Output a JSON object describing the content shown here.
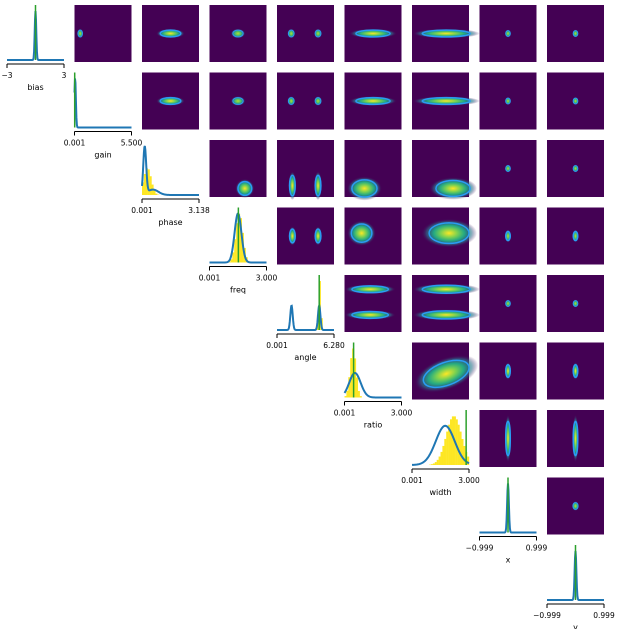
{
  "chart_data": {
    "type": "pairplot",
    "variables": [
      {
        "name": "bias",
        "range_labels": [
          "−3",
          "3"
        ],
        "range": [
          -3,
          3
        ]
      },
      {
        "name": "gain",
        "range_labels": [
          "0.001",
          "5.500"
        ],
        "range": [
          0.001,
          5.5
        ]
      },
      {
        "name": "phase",
        "range_labels": [
          "0.001",
          "3.138"
        ],
        "range": [
          0.001,
          3.138
        ]
      },
      {
        "name": "freq",
        "range_labels": [
          "0.001",
          "3.000"
        ],
        "range": [
          0.001,
          3.0
        ]
      },
      {
        "name": "angle",
        "range_labels": [
          "0.001",
          "6.280"
        ],
        "range": [
          0.001,
          6.28
        ]
      },
      {
        "name": "ratio",
        "range_labels": [
          "0.001",
          "3.000"
        ],
        "range": [
          0.001,
          3.0
        ]
      },
      {
        "name": "width",
        "range_labels": [
          "0.001",
          "3.000"
        ],
        "range": [
          0.001,
          3.0
        ]
      },
      {
        "name": "x",
        "range_labels": [
          "−0.999",
          "0.999"
        ],
        "range": [
          -0.999,
          0.999
        ]
      },
      {
        "name": "y",
        "range_labels": [
          "−0.999",
          "0.999"
        ],
        "range": [
          -0.999,
          0.999
        ]
      }
    ],
    "diagonal": [
      {
        "var": "bias",
        "true_value": 0.0,
        "hist": false,
        "kde": [
          {
            "mu": 0.0,
            "sd": 0.08,
            "w": 1
          }
        ]
      },
      {
        "var": "gain",
        "true_value": 0.02,
        "hist": false,
        "kde": [
          {
            "mu": 0.06,
            "sd": 0.07,
            "w": 1
          }
        ]
      },
      {
        "var": "phase",
        "true_value": null,
        "hist": true,
        "hist_kde": [
          {
            "mu": 0.3,
            "sd": 0.2,
            "w": 1
          }
        ],
        "kde": [
          {
            "mu": 0.15,
            "sd": 0.08,
            "w": 0.7
          },
          {
            "mu": 0.6,
            "sd": 0.3,
            "w": 0.3
          }
        ]
      },
      {
        "var": "freq",
        "true_value": 1.52,
        "hist": true,
        "hist_kde": [
          {
            "mu": 1.57,
            "sd": 0.18,
            "w": 1
          }
        ],
        "kde": [
          {
            "mu": 1.5,
            "sd": 0.18,
            "w": 1
          }
        ]
      },
      {
        "var": "angle",
        "true_value": 4.65,
        "hist": true,
        "hist_kde": [
          {
            "mu": 4.7,
            "sd": 0.13,
            "w": 1
          }
        ],
        "kde": [
          {
            "mu": 1.6,
            "sd": 0.13,
            "w": 0.5
          },
          {
            "mu": 4.65,
            "sd": 0.13,
            "w": 0.5
          }
        ]
      },
      {
        "var": "ratio",
        "true_value": 0.48,
        "hist": true,
        "hist_kde": [
          {
            "mu": 0.45,
            "sd": 0.15,
            "w": 1
          }
        ],
        "kde": [
          {
            "mu": 0.55,
            "sd": 0.3,
            "w": 1
          }
        ]
      },
      {
        "var": "width",
        "true_value": 2.85,
        "hist": true,
        "hist_kde": [
          {
            "mu": 2.2,
            "sd": 0.4,
            "w": 1
          }
        ],
        "kde": [
          {
            "mu": 1.75,
            "sd": 0.5,
            "w": 1
          }
        ]
      },
      {
        "var": "x",
        "true_value": 0.0,
        "hist": false,
        "kde": [
          {
            "mu": 0.0,
            "sd": 0.03,
            "w": 1
          }
        ]
      },
      {
        "var": "y",
        "true_value": 0.0,
        "hist": false,
        "kde": [
          {
            "mu": 0.0,
            "sd": 0.03,
            "w": 1
          }
        ]
      }
    ],
    "offdiagonal": {
      "colormap": "viridis",
      "background_color": "#440154",
      "contour_color": "#2a9df4"
    },
    "colors": {
      "kde": "#1f77b4",
      "hist": "#fde725",
      "truth": "#2ca02c"
    },
    "grid": false,
    "legend": "none"
  }
}
